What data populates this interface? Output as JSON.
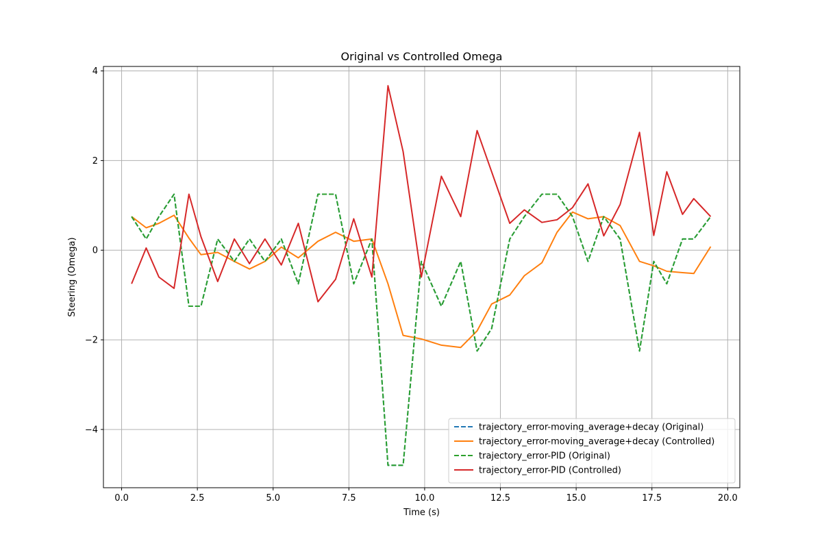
{
  "chart_data": {
    "type": "line",
    "title": "Original vs Controlled Omega",
    "xlabel": "Time (s)",
    "ylabel": "Steering (Omega)",
    "xlim": [
      -0.6,
      20.4
    ],
    "ylim": [
      -5.3,
      4.1
    ],
    "xticks": [
      0.0,
      2.5,
      5.0,
      7.5,
      10.0,
      12.5,
      15.0,
      17.5,
      20.0
    ],
    "xtick_labels": [
      "0.0",
      "2.5",
      "5.0",
      "7.5",
      "10.0",
      "12.5",
      "15.0",
      "17.5",
      "20.0"
    ],
    "yticks": [
      -4,
      -2,
      0,
      2,
      4
    ],
    "ytick_labels": [
      "−4",
      "−2",
      "0",
      "2",
      "4"
    ],
    "grid": true,
    "legend_position": "lower-right",
    "x": [
      0.33,
      0.81,
      1.23,
      1.73,
      2.22,
      2.62,
      3.17,
      3.72,
      4.22,
      4.73,
      5.27,
      5.83,
      6.48,
      7.06,
      7.66,
      8.26,
      8.79,
      9.29,
      9.89,
      10.55,
      11.19,
      11.73,
      12.21,
      12.81,
      13.29,
      13.87,
      14.37,
      14.88,
      15.39,
      15.91,
      16.45,
      17.09,
      17.56,
      17.99,
      18.51,
      18.88,
      19.44
    ],
    "series": [
      {
        "name": "trajectory_error-moving_average+decay (Original)",
        "color": "#1f77b4",
        "style": "dashed",
        "values": [
          0.75,
          0.25,
          0.75,
          1.25,
          -1.25,
          -1.25,
          0.25,
          -0.25,
          0.25,
          -0.25,
          0.25,
          -0.75,
          1.25,
          1.25,
          -0.75,
          0.25,
          -4.8,
          -4.8,
          -0.25,
          -1.25,
          -0.25,
          -2.25,
          -1.75,
          0.25,
          0.75,
          1.25,
          1.25,
          0.75,
          -0.25,
          0.75,
          0.25,
          -2.25,
          -0.25,
          -0.75,
          0.25,
          0.25,
          0.75
        ]
      },
      {
        "name": "trajectory_error-moving_average+decay (Controlled)",
        "color": "#ff7f0e",
        "style": "solid",
        "values": [
          0.75,
          0.5,
          0.6,
          0.78,
          0.27,
          -0.1,
          -0.05,
          -0.25,
          -0.42,
          -0.25,
          0.07,
          -0.17,
          0.2,
          0.4,
          0.2,
          0.25,
          -0.75,
          -1.9,
          -1.98,
          -2.12,
          -2.17,
          -1.8,
          -1.2,
          -1.0,
          -0.57,
          -0.28,
          0.4,
          0.85,
          0.7,
          0.75,
          0.55,
          -0.25,
          -0.35,
          -0.47,
          -0.5,
          -0.52,
          0.08
        ]
      },
      {
        "name": "trajectory_error-PID (Original)",
        "color": "#2ca02c",
        "style": "dashed",
        "values": [
          0.75,
          0.25,
          0.75,
          1.25,
          -1.25,
          -1.25,
          0.25,
          -0.25,
          0.25,
          -0.25,
          0.25,
          -0.75,
          1.25,
          1.25,
          -0.75,
          0.25,
          -4.8,
          -4.8,
          -0.25,
          -1.25,
          -0.25,
          -2.25,
          -1.75,
          0.25,
          0.75,
          1.25,
          1.25,
          0.75,
          -0.25,
          0.75,
          0.25,
          -2.25,
          -0.25,
          -0.75,
          0.25,
          0.25,
          0.75
        ]
      },
      {
        "name": "trajectory_error-PID (Controlled)",
        "color": "#d62728",
        "style": "solid",
        "values": [
          -0.75,
          0.05,
          -0.6,
          -0.85,
          1.25,
          0.3,
          -0.7,
          0.25,
          -0.3,
          0.25,
          -0.33,
          0.6,
          -1.15,
          -0.65,
          0.7,
          -0.6,
          3.67,
          2.2,
          -0.6,
          1.65,
          0.75,
          2.67,
          1.75,
          0.6,
          0.9,
          0.62,
          0.68,
          0.95,
          1.48,
          0.32,
          1.02,
          2.63,
          0.33,
          1.75,
          0.8,
          1.15,
          0.75
        ]
      }
    ]
  }
}
